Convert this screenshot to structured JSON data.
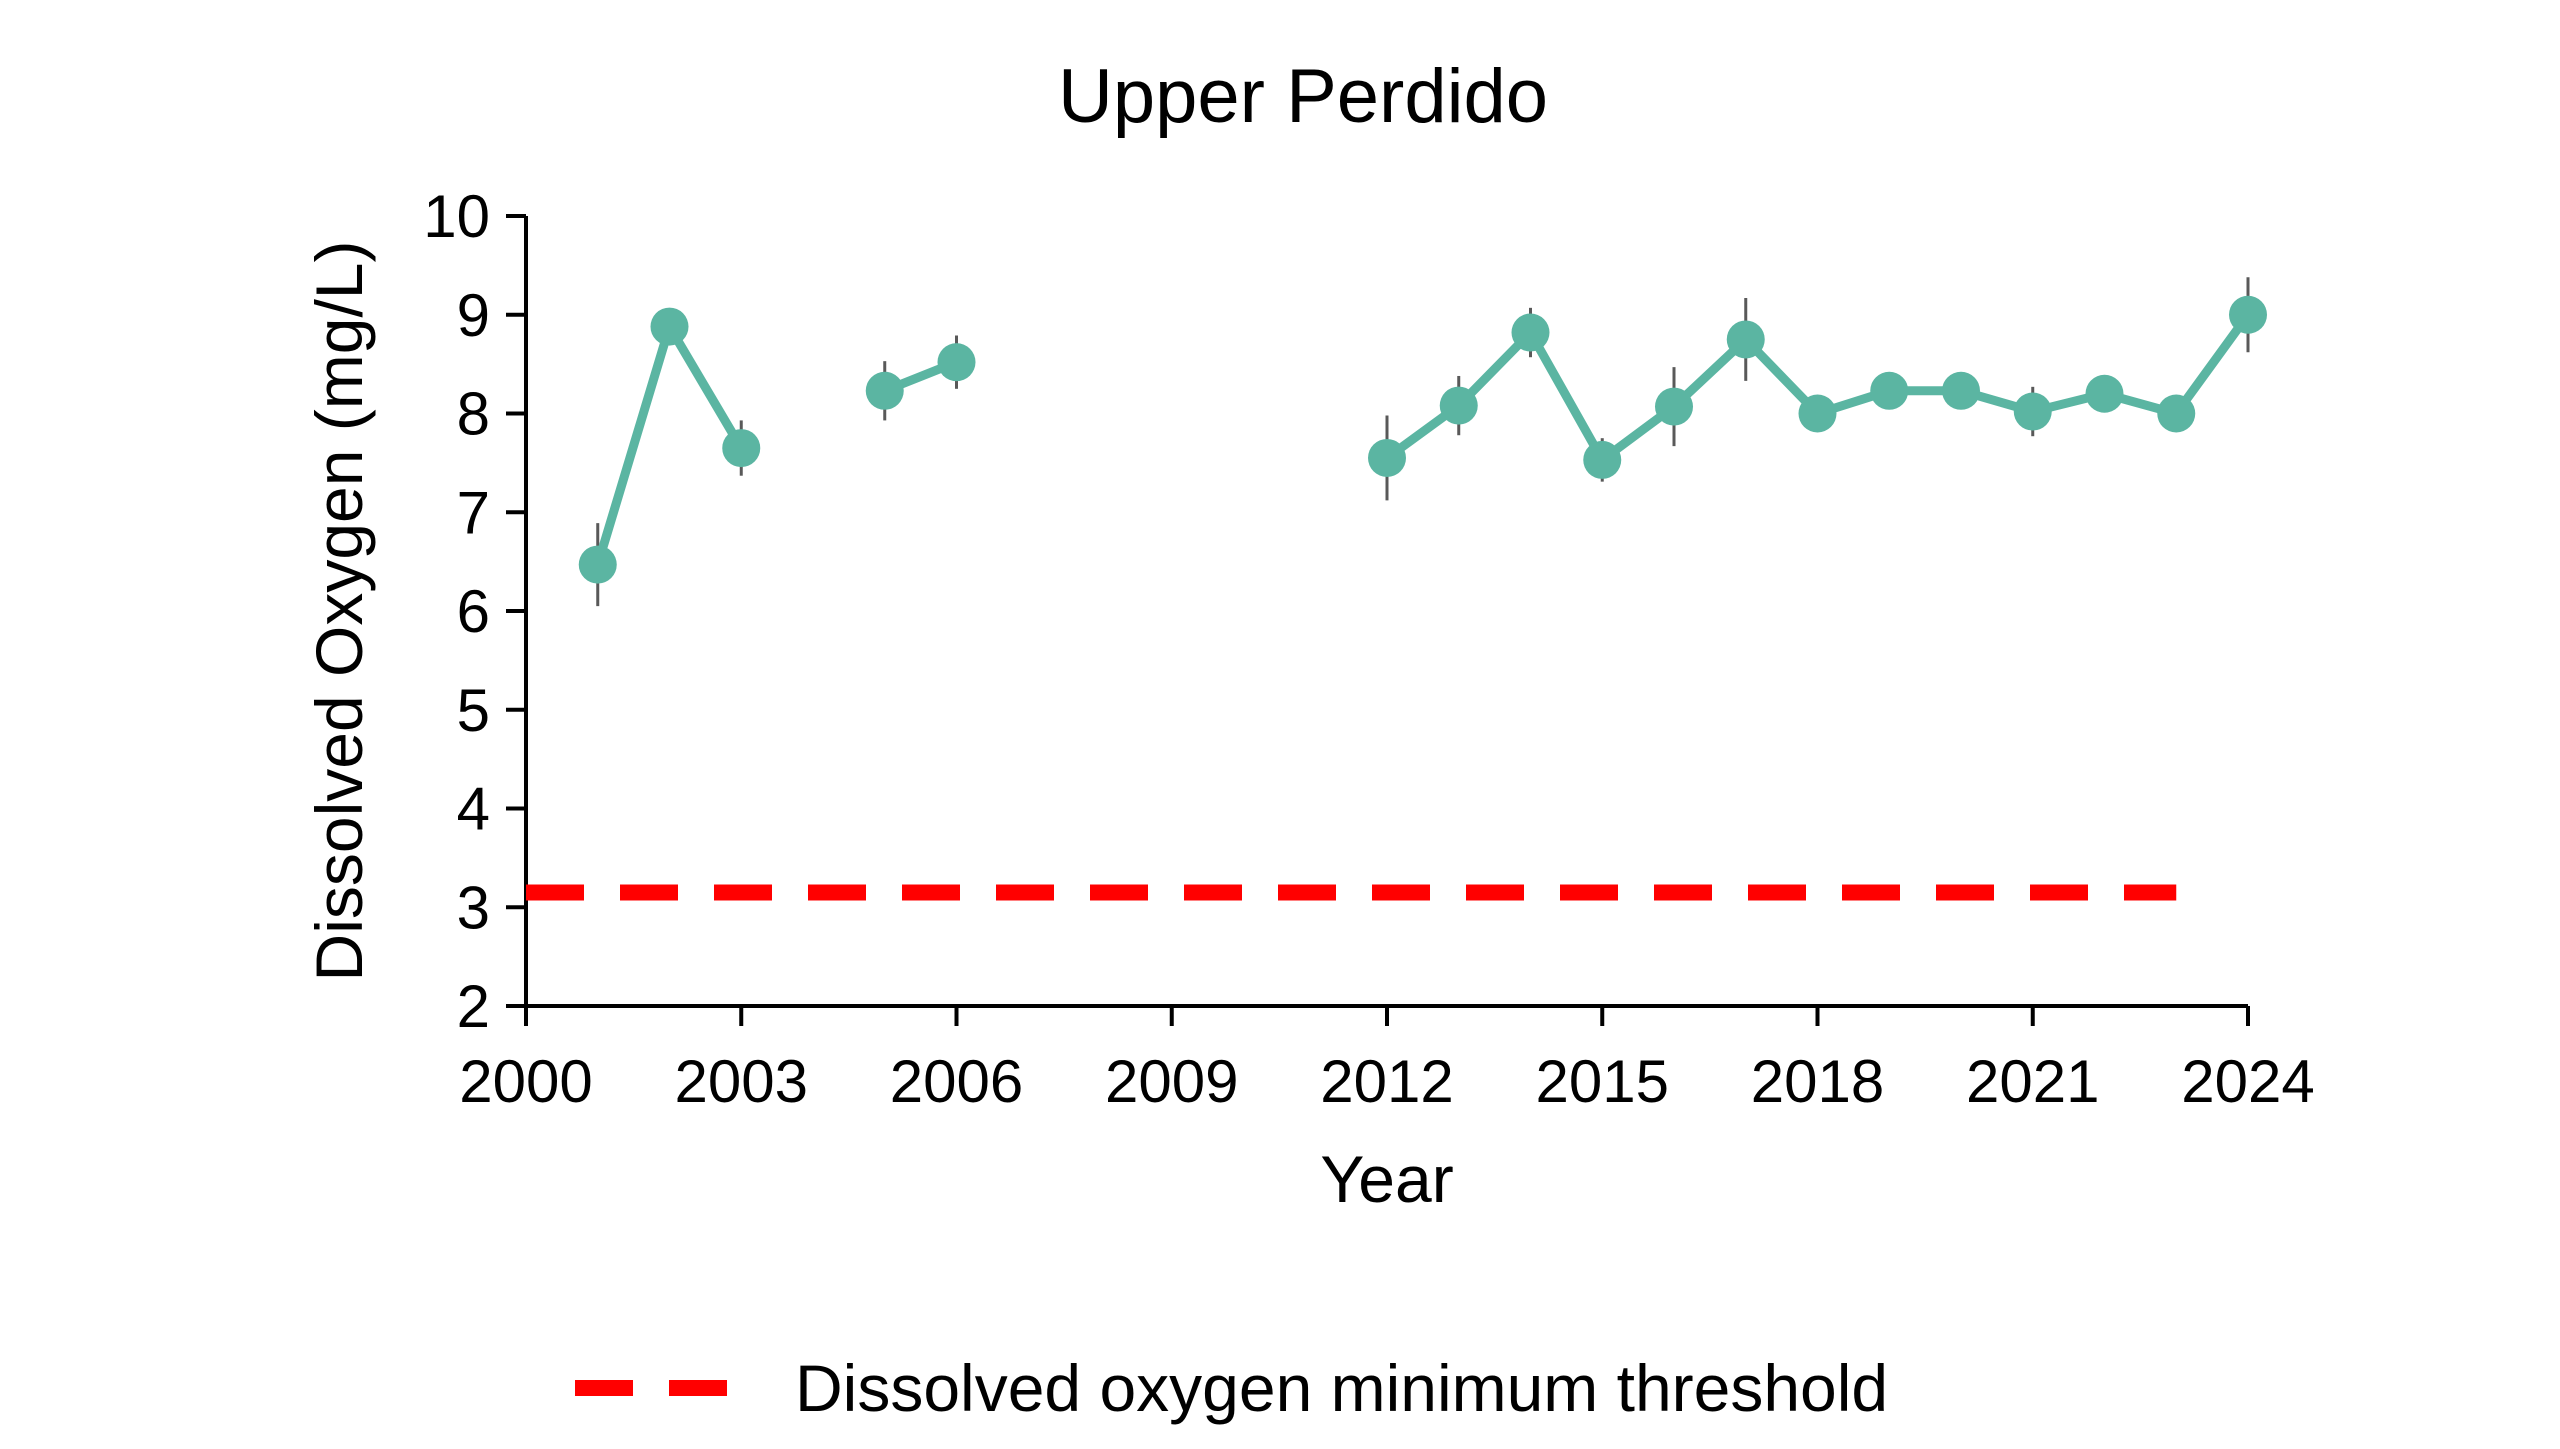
{
  "chart_data": {
    "type": "line",
    "title": "Upper Perdido",
    "xlabel": "Year",
    "ylabel": "Dissolved Oxygen (mg/L)",
    "xlim": [
      2000,
      2024
    ],
    "ylim": [
      2,
      10
    ],
    "x_ticks": [
      "2000",
      "2003",
      "2006",
      "2009",
      "2012",
      "2015",
      "2018",
      "2021",
      "2024"
    ],
    "y_ticks": [
      "2",
      "3",
      "4",
      "5",
      "6",
      "7",
      "8",
      "9",
      "10"
    ],
    "grid": false,
    "series": [
      {
        "color": "#5BB5A2",
        "x": [
          2001,
          2002,
          2003,
          2005,
          2006,
          2012,
          2013,
          2014,
          2015,
          2016,
          2017,
          2018,
          2019,
          2020,
          2021,
          2022,
          2023,
          2024
        ],
        "y": [
          6.47,
          8.88,
          7.65,
          8.23,
          8.52,
          7.55,
          8.08,
          8.82,
          7.53,
          8.07,
          8.75,
          8.0,
          8.23,
          8.23,
          8.02,
          8.2,
          8.0,
          9.0
        ],
        "error": [
          0.42,
          0.1,
          0.28,
          0.3,
          0.27,
          0.43,
          0.3,
          0.25,
          0.22,
          0.4,
          0.42,
          0.1,
          0.1,
          0.1,
          0.25,
          0.1,
          0.1,
          0.38
        ]
      }
    ],
    "threshold": {
      "name": "Dissolved oxygen minimum threshold",
      "value": 3.15,
      "x_range": [
        2000,
        2023
      ],
      "color": "#FF0000",
      "style": "dashed"
    },
    "legend": {
      "position": "bottom",
      "entries": [
        "Dissolved oxygen minimum threshold"
      ]
    }
  }
}
